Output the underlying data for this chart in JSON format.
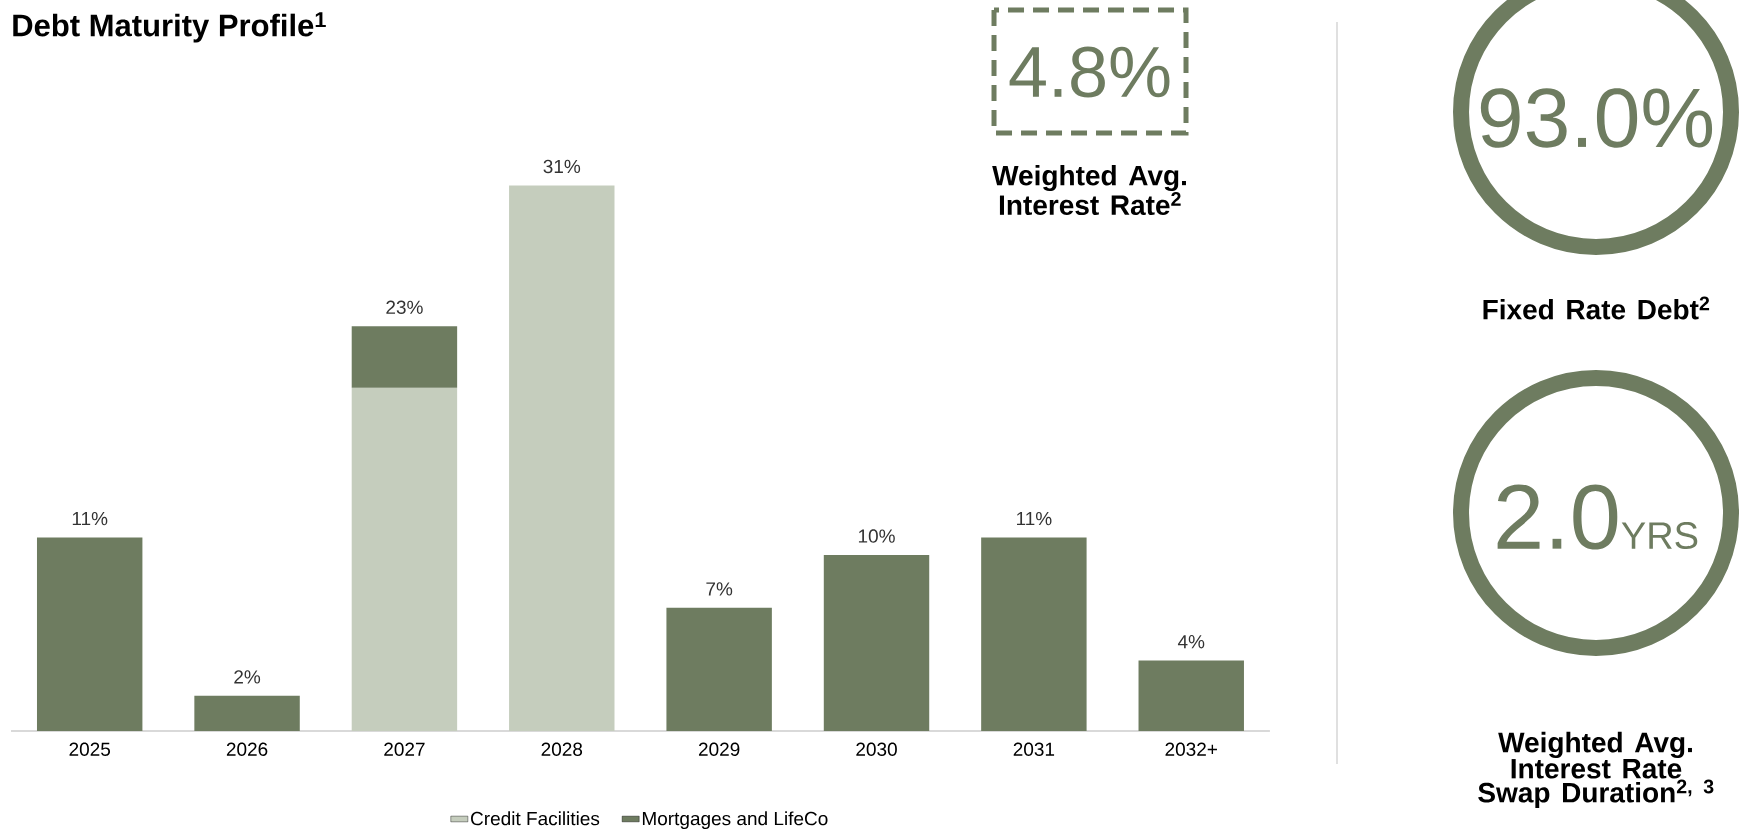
{
  "chart_data": [
    {
      "type": "bar",
      "title": "Debt Maturity Profile$^{1}$",
      "categories": [
        "2025",
        "2026",
        "2027",
        "2028",
        "2029",
        "2030",
        "2031",
        "2032+"
      ],
      "stacked": true,
      "legend": "bottom",
      "series": [
        {
          "name": "Credit Facilities",
          "color": "#c5cdbd",
          "values": [
            null,
            null,
            19.5,
            31,
            null,
            null,
            null,
            null
          ],
          "value_labels": [
            null,
            null,
            null,
            "31%",
            null,
            null,
            null,
            null
          ]
        },
        {
          "name": "Mortgages and LifeCo",
          "color": "#6e7c60",
          "values": [
            11,
            2,
            3.5,
            null,
            7,
            10,
            11,
            4
          ],
          "value_labels": [
            "11%",
            "2%",
            null,
            null,
            "7%",
            "10%",
            "11%",
            "4%"
          ]
        }
      ],
      "totals": [
        null,
        null,
        "23%",
        null,
        null,
        null,
        null,
        null
      ]
    },
    {
      "type": "other",
      "annotations": [
        "4.8%",
        "Weighted Avg. Interest Rate$^{2}$"
      ]
    },
    {
      "type": "other",
      "annotations": [
        "93.0%",
        "Fixed Rate Debt$^{2}$"
      ]
    },
    {
      "type": "other",
      "annotations": [
        "2.0",
        "YRS",
        "Weighted Avg. Interest Rate Swap Duration$^{2, 3}$"
      ]
    }
  ]
}
